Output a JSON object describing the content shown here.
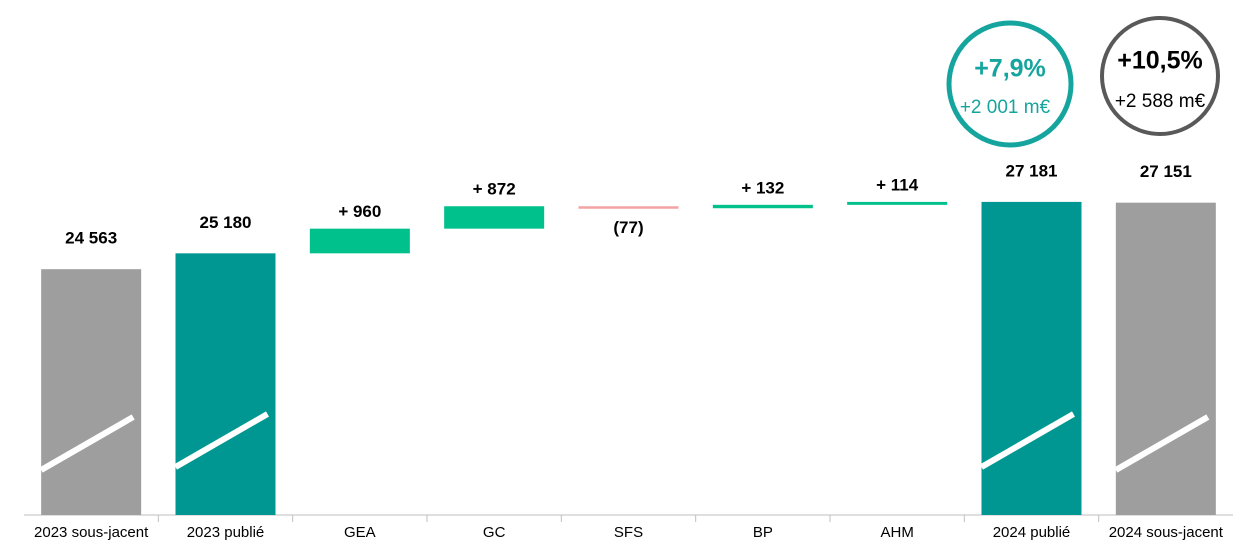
{
  "chart_data": {
    "type": "waterfall",
    "categories": [
      "2023 sous-jacent",
      "2023 publié",
      "GEA",
      "GC",
      "SFS",
      "BP",
      "AHM",
      "2024 publié",
      "2024 sous-jacent"
    ],
    "values": [
      24563,
      25180,
      960,
      872,
      -77,
      132,
      114,
      27181,
      27151
    ],
    "value_labels": [
      "24 563",
      "25 180",
      "+ 960",
      "+ 872",
      "(77)",
      "+ 132",
      "+ 114",
      "27 181",
      "27 151"
    ],
    "measure": [
      "absolute",
      "absolute",
      "relative",
      "relative",
      "relative",
      "relative",
      "relative",
      "absolute",
      "absolute"
    ],
    "colors": [
      "#9e9e9e",
      "#009691",
      "#00c08b",
      "#00c08b",
      "#f4a3a3",
      "#00c08b",
      "#00c08b",
      "#009691",
      "#9e9e9e"
    ],
    "ylim": [
      15000,
      28500
    ],
    "annotations": [
      {
        "title": "+7,9%",
        "subtitle": "+2 001 m€",
        "color": "#16a59e"
      },
      {
        "title": "+10,5%",
        "subtitle": "+2 588 m€",
        "color": "#595959"
      }
    ]
  }
}
